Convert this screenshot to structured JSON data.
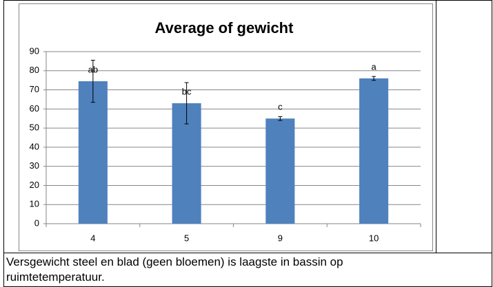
{
  "chart_data": {
    "type": "bar",
    "title": "Average of gewicht",
    "categories": [
      "4",
      "5",
      "9",
      "10"
    ],
    "values": [
      74.5,
      63,
      55,
      76
    ],
    "errors": [
      11,
      10.8,
      1,
      1
    ],
    "annotations": [
      "ab",
      "bc",
      "c",
      "a"
    ],
    "color": "#4f81bd",
    "ylim": [
      0,
      90
    ],
    "yticks": [
      0,
      10,
      20,
      30,
      40,
      50,
      60,
      70,
      80,
      90
    ],
    "grid": true
  },
  "caption": "Versgewicht steel en blad (geen bloemen) is laagste in bassin op ruimtetemperatuur."
}
